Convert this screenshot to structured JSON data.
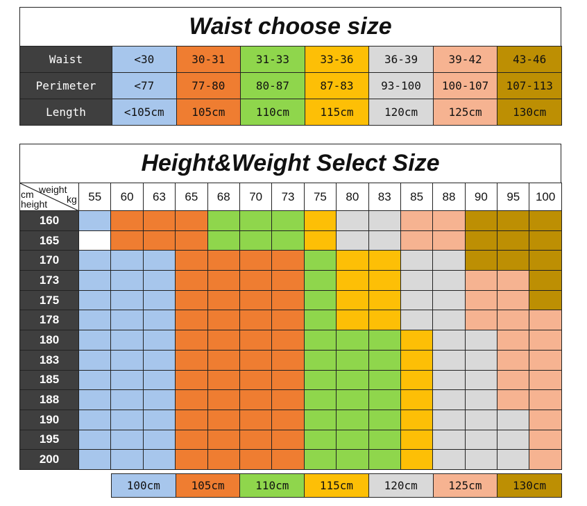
{
  "colors": {
    "blue": "#a7c6ec",
    "orange": "#ef7d31",
    "green": "#8fd64c",
    "yellow": "#fdbf06",
    "gray": "#d9d9d9",
    "peach": "#f6b391",
    "gold": "#bd8f03",
    "label_bg": "#3f3f3f"
  },
  "waist_table": {
    "title": "Waist choose size",
    "rows": [
      {
        "label": "Waist",
        "values": [
          "<30",
          "30-31",
          "31-33",
          "33-36",
          "36-39",
          "39-42",
          "43-46"
        ]
      },
      {
        "label": "Perimeter",
        "values": [
          "<77",
          "77-80",
          "80-87",
          "87-83",
          "93-100",
          "100-107",
          "107-113"
        ]
      },
      {
        "label": "Length",
        "values": [
          "<105cm",
          "105cm",
          "110cm",
          "115cm",
          "120cm",
          "125cm",
          "130cm"
        ]
      }
    ],
    "column_colors": [
      "blue",
      "orange",
      "green",
      "yellow",
      "gray",
      "peach",
      "gold"
    ]
  },
  "hw_table": {
    "title": "Height&Weight Select Size",
    "corner": {
      "top": "weight",
      "top_unit": "kg",
      "left_unit": "cm",
      "left": "height"
    },
    "weights": [
      "55",
      "60",
      "63",
      "65",
      "68",
      "70",
      "73",
      "75",
      "80",
      "83",
      "85",
      "88",
      "90",
      "95",
      "100"
    ],
    "heights": [
      "160",
      "165",
      "170",
      "173",
      "175",
      "178",
      "180",
      "183",
      "185",
      "188",
      "190",
      "195",
      "200"
    ],
    "grid": [
      [
        "blue",
        "orange",
        "orange",
        "orange",
        "green",
        "green",
        "green",
        "yellow",
        "gray",
        "gray",
        "peach",
        "peach",
        "gold",
        "gold",
        "gold"
      ],
      [
        "white",
        "orange",
        "orange",
        "orange",
        "green",
        "green",
        "green",
        "yellow",
        "gray",
        "gray",
        "peach",
        "peach",
        "gold",
        "gold",
        "gold"
      ],
      [
        "blue",
        "blue",
        "blue",
        "orange",
        "orange",
        "orange",
        "orange",
        "green",
        "yellow",
        "yellow",
        "gray",
        "gray",
        "gold",
        "gold",
        "gold"
      ],
      [
        "blue",
        "blue",
        "blue",
        "orange",
        "orange",
        "orange",
        "orange",
        "green",
        "yellow",
        "yellow",
        "gray",
        "gray",
        "peach",
        "peach",
        "gold"
      ],
      [
        "blue",
        "blue",
        "blue",
        "orange",
        "orange",
        "orange",
        "orange",
        "green",
        "yellow",
        "yellow",
        "gray",
        "gray",
        "peach",
        "peach",
        "gold"
      ],
      [
        "blue",
        "blue",
        "blue",
        "orange",
        "orange",
        "orange",
        "orange",
        "green",
        "yellow",
        "yellow",
        "gray",
        "gray",
        "peach",
        "peach",
        "peach"
      ],
      [
        "blue",
        "blue",
        "blue",
        "orange",
        "orange",
        "orange",
        "orange",
        "green",
        "green",
        "green",
        "yellow",
        "gray",
        "gray",
        "peach",
        "peach"
      ],
      [
        "blue",
        "blue",
        "blue",
        "orange",
        "orange",
        "orange",
        "orange",
        "green",
        "green",
        "green",
        "yellow",
        "gray",
        "gray",
        "peach",
        "peach"
      ],
      [
        "blue",
        "blue",
        "blue",
        "orange",
        "orange",
        "orange",
        "orange",
        "green",
        "green",
        "green",
        "yellow",
        "gray",
        "gray",
        "peach",
        "peach"
      ],
      [
        "blue",
        "blue",
        "blue",
        "orange",
        "orange",
        "orange",
        "orange",
        "green",
        "green",
        "green",
        "yellow",
        "gray",
        "gray",
        "peach",
        "peach"
      ],
      [
        "blue",
        "blue",
        "blue",
        "orange",
        "orange",
        "orange",
        "orange",
        "green",
        "green",
        "green",
        "yellow",
        "gray",
        "gray",
        "gray",
        "peach"
      ],
      [
        "blue",
        "blue",
        "blue",
        "orange",
        "orange",
        "orange",
        "orange",
        "green",
        "green",
        "green",
        "yellow",
        "gray",
        "gray",
        "gray",
        "peach"
      ],
      [
        "blue",
        "blue",
        "blue",
        "orange",
        "orange",
        "orange",
        "orange",
        "green",
        "green",
        "green",
        "yellow",
        "gray",
        "gray",
        "gray",
        "peach"
      ]
    ]
  },
  "legend": {
    "items": [
      {
        "label": "100cm",
        "color": "blue"
      },
      {
        "label": "105cm",
        "color": "orange"
      },
      {
        "label": "110cm",
        "color": "green"
      },
      {
        "label": "115cm",
        "color": "yellow"
      },
      {
        "label": "120cm",
        "color": "gray"
      },
      {
        "label": "125cm",
        "color": "peach"
      },
      {
        "label": "130cm",
        "color": "gold"
      }
    ]
  }
}
